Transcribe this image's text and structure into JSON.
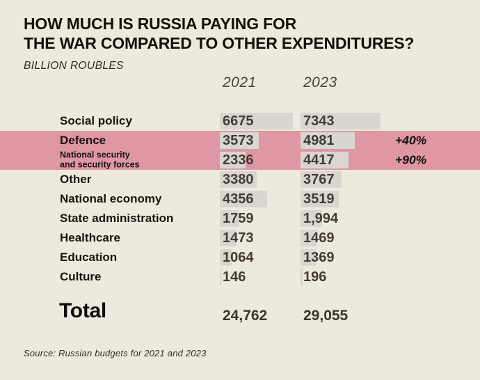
{
  "header": {
    "title_line1": "HOW MUCH IS RUSSIA PAYING FOR",
    "title_line2": "THE WAR COMPARED TO OTHER EXPENDITURES?",
    "unit_label": "BILLION ROUBLES"
  },
  "columns": {
    "col1": "2021",
    "col2": "2023"
  },
  "chart_data": {
    "type": "bar",
    "orientation": "horizontal",
    "title": "HOW MUCH IS RUSSIA PAYING FOR THE WAR COMPARED TO OTHER EXPENDITURES?",
    "subtitle": "BILLION ROUBLES",
    "unit": "billion roubles",
    "legend_position": "column-headers",
    "categories": [
      "Social policy",
      "Defence",
      "National security and security forces",
      "Other",
      "National economy",
      "State administration",
      "Healthcare",
      "Education",
      "Culture"
    ],
    "series": [
      {
        "name": "2021",
        "values": [
          6675,
          3573,
          2336,
          3380,
          4356,
          1759,
          1473,
          1064,
          146
        ]
      },
      {
        "name": "2023",
        "values": [
          7343,
          4981,
          4417,
          3767,
          3519,
          1994,
          1469,
          1369,
          196
        ]
      }
    ],
    "highlighted_categories": [
      "Defence",
      "National security and security forces"
    ],
    "annotations": [
      {
        "category": "Defence",
        "text": "+40%"
      },
      {
        "category": "National security and security forces",
        "text": "+90%"
      }
    ],
    "rows": [
      {
        "label": "Social policy",
        "label_line2": "",
        "v2021": "6675",
        "v2023": "7343",
        "n2021": 6675,
        "n2023": 7343,
        "change": "",
        "highlight": false
      },
      {
        "label": "Defence",
        "label_line2": "",
        "v2021": "3573",
        "v2023": "4981",
        "n2021": 3573,
        "n2023": 4981,
        "change": "+40%",
        "highlight": true
      },
      {
        "label": "National security",
        "label_line2": "and security forces",
        "v2021": "2336",
        "v2023": "4417",
        "n2021": 2336,
        "n2023": 4417,
        "change": "+90%",
        "highlight": true
      },
      {
        "label": "Other",
        "label_line2": "",
        "v2021": "3380",
        "v2023": "3767",
        "n2021": 3380,
        "n2023": 3767,
        "change": "",
        "highlight": false
      },
      {
        "label": "National economy",
        "label_line2": "",
        "v2021": "4356",
        "v2023": "3519",
        "n2021": 4356,
        "n2023": 3519,
        "change": "",
        "highlight": false
      },
      {
        "label": "State administration",
        "label_line2": "",
        "v2021": "1759",
        "v2023": "1,994",
        "n2021": 1759,
        "n2023": 1994,
        "change": "",
        "highlight": false
      },
      {
        "label": "Healthcare",
        "label_line2": "",
        "v2021": "1473",
        "v2023": "1469",
        "n2021": 1473,
        "n2023": 1469,
        "change": "",
        "highlight": false
      },
      {
        "label": "Education",
        "label_line2": "",
        "v2021": "1064",
        "v2023": "1369",
        "n2021": 1064,
        "n2023": 1369,
        "change": "",
        "highlight": false
      },
      {
        "label": "Culture",
        "label_line2": "",
        "v2021": "146",
        "v2023": "196",
        "n2021": 146,
        "n2023": 196,
        "change": "",
        "highlight": false
      }
    ],
    "total": {
      "label": "Total",
      "v2021": "24,762",
      "v2023": "29,055",
      "n2021": 24762,
      "n2023": 29055
    }
  },
  "source": "Source: Russian budgets for 2021 and 2023",
  "colors": {
    "background": "#EDE9DC",
    "highlight": "#DF97A3",
    "bar": "#D9D6D0",
    "title_text": "#14110B",
    "number_text": "#423C31"
  }
}
